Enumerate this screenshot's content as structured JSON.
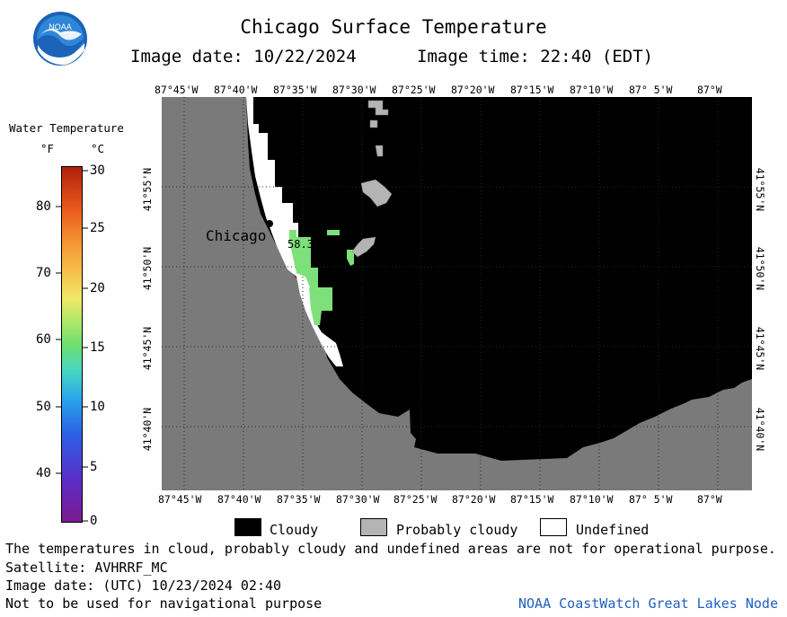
{
  "title": "Chicago Surface Temperature",
  "image_date_label": "Image date: 10/22/2024",
  "image_time_label": "Image time: 22:40 (EDT)",
  "logo_text": "NOAA",
  "lon_labels": [
    "87°45'W",
    "87°40'W",
    "87°35'W",
    "87°30'W",
    "87°25'W",
    "87°20'W",
    "87°15'W",
    "87°10'W",
    "87° 5'W",
    "87°W"
  ],
  "lat_labels": [
    "41°55'N",
    "41°50'N",
    "41°45'N",
    "41°40'N"
  ],
  "legend": {
    "title": "Water Temperature",
    "unit_f": "°F",
    "unit_c": "°C",
    "f_ticks": [
      "80",
      "70",
      "60",
      "50",
      "40"
    ],
    "c_ticks": [
      "30",
      "25",
      "20",
      "15",
      "10",
      "5",
      "0"
    ]
  },
  "city_label": "Chicago",
  "reading_value": "58.3",
  "key": {
    "cloudy": "Cloudy",
    "probably_cloudy": "Probably cloudy",
    "undefined": "Undefined"
  },
  "colors": {
    "land": "#7a7a7a",
    "water_cloudy": "#000000",
    "probably_cloudy": "#b4b4b4",
    "undefined": "#ffffff",
    "reading_green": "#7ee07a",
    "footer_link": "#2060c0"
  },
  "footer": {
    "disclaimer": "The temperatures in cloud, probably cloudy and undefined areas are not for operational purpose.",
    "satellite": "Satellite: AVHRRF_MC",
    "utc_date": "Image date: (UTC) 10/23/2024  02:40",
    "navigation": "Not to be used for navigational purpose",
    "node": "NOAA CoastWatch Great Lakes Node"
  }
}
